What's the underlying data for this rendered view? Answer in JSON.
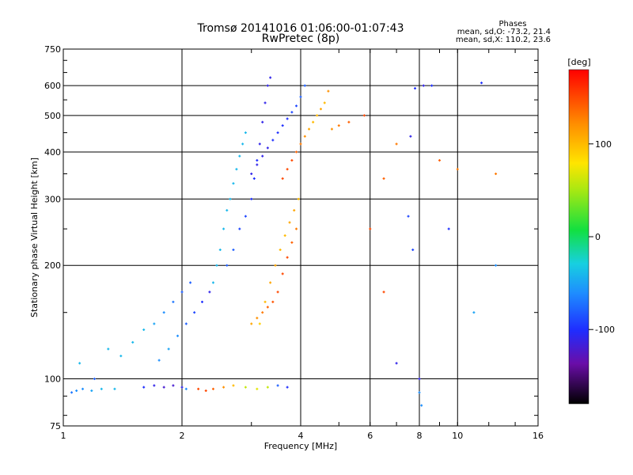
{
  "chart_data": {
    "type": "scatter",
    "title": "Tromsø 20141016 01:06:00-01:07:43",
    "subtitle": "RwPretec (8p)",
    "xlabel": "Frequency [MHz]",
    "ylabel": "Stationary phase Virtual Height [km]",
    "xscale": "log",
    "yscale": "log",
    "xlim": [
      1,
      16
    ],
    "ylim": [
      75,
      750
    ],
    "x_ticks": [
      1,
      2,
      4,
      6,
      8,
      10,
      16
    ],
    "y_ticks": [
      75,
      100,
      200,
      300,
      400,
      500,
      600,
      750
    ],
    "grid": true,
    "stats": {
      "header": "Phases",
      "line_o": "mean, sd,O: -73.2, 21.4",
      "line_x": "mean, sd,X: 110.2, 23.6"
    },
    "colorbar": {
      "label": "[deg]",
      "range": [
        -180,
        180
      ],
      "ticks": [
        100,
        0,
        -100
      ],
      "colormap": "rainbow"
    },
    "series": [
      {
        "color_by": "phase",
        "points": [
          [
            1.05,
            92,
            -70
          ],
          [
            1.08,
            93,
            -60
          ],
          [
            1.12,
            94,
            -60
          ],
          [
            1.18,
            93,
            -50
          ],
          [
            1.25,
            94,
            -40
          ],
          [
            1.35,
            94,
            -40
          ],
          [
            1.1,
            110,
            -40
          ],
          [
            1.2,
            100,
            -80
          ],
          [
            1.3,
            120,
            -40
          ],
          [
            1.6,
            95,
            -100
          ],
          [
            1.7,
            96,
            -110
          ],
          [
            1.8,
            95,
            -120
          ],
          [
            1.9,
            96,
            -120
          ],
          [
            2.0,
            95,
            -110
          ],
          [
            2.05,
            94,
            -60
          ],
          [
            2.2,
            94,
            150
          ],
          [
            2.3,
            93,
            150
          ],
          [
            2.4,
            94,
            140
          ],
          [
            2.55,
            95,
            120
          ],
          [
            2.7,
            96,
            100
          ],
          [
            2.9,
            95,
            60
          ],
          [
            3.1,
            94,
            70
          ],
          [
            3.3,
            95,
            60
          ],
          [
            3.5,
            96,
            -80
          ],
          [
            3.7,
            95,
            -100
          ],
          [
            1.4,
            115,
            -40
          ],
          [
            1.5,
            125,
            -40
          ],
          [
            1.6,
            135,
            -40
          ],
          [
            1.7,
            140,
            -50
          ],
          [
            1.8,
            150,
            -60
          ],
          [
            1.9,
            160,
            -70
          ],
          [
            2.0,
            170,
            -80
          ],
          [
            2.1,
            180,
            -80
          ],
          [
            1.75,
            112,
            -60
          ],
          [
            1.85,
            120,
            -50
          ],
          [
            1.95,
            130,
            -60
          ],
          [
            2.05,
            140,
            -80
          ],
          [
            2.15,
            150,
            -90
          ],
          [
            2.25,
            160,
            -100
          ],
          [
            2.35,
            170,
            -110
          ],
          [
            2.4,
            180,
            -40
          ],
          [
            2.45,
            200,
            -40
          ],
          [
            2.5,
            220,
            -40
          ],
          [
            2.55,
            250,
            -40
          ],
          [
            2.6,
            280,
            -40
          ],
          [
            2.65,
            300,
            -40
          ],
          [
            2.7,
            330,
            -40
          ],
          [
            2.75,
            360,
            -40
          ],
          [
            2.8,
            390,
            -40
          ],
          [
            2.85,
            420,
            -40
          ],
          [
            2.9,
            450,
            -40
          ],
          [
            2.6,
            200,
            -80
          ],
          [
            2.7,
            220,
            -80
          ],
          [
            2.8,
            250,
            -90
          ],
          [
            2.9,
            270,
            -90
          ],
          [
            3.0,
            300,
            -100
          ],
          [
            3.05,
            340,
            -100
          ],
          [
            3.1,
            380,
            -100
          ],
          [
            3.15,
            420,
            -110
          ],
          [
            3.2,
            480,
            -110
          ],
          [
            3.25,
            540,
            -110
          ],
          [
            3.3,
            600,
            -110
          ],
          [
            3.35,
            630,
            -110
          ],
          [
            3.0,
            350,
            -110
          ],
          [
            3.1,
            370,
            -110
          ],
          [
            3.2,
            390,
            -110
          ],
          [
            3.3,
            410,
            -110
          ],
          [
            3.4,
            430,
            -100
          ],
          [
            3.5,
            450,
            -100
          ],
          [
            3.6,
            470,
            -100
          ],
          [
            3.7,
            490,
            -100
          ],
          [
            3.8,
            510,
            -90
          ],
          [
            3.9,
            530,
            -90
          ],
          [
            4.0,
            560,
            -80
          ],
          [
            4.1,
            600,
            -80
          ],
          [
            3.0,
            140,
            110
          ],
          [
            3.1,
            145,
            120
          ],
          [
            3.2,
            150,
            130
          ],
          [
            3.3,
            155,
            140
          ],
          [
            3.4,
            160,
            145
          ],
          [
            3.5,
            170,
            150
          ],
          [
            3.6,
            190,
            150
          ],
          [
            3.7,
            210,
            150
          ],
          [
            3.8,
            230,
            140
          ],
          [
            3.9,
            250,
            130
          ],
          [
            3.15,
            140,
            90
          ],
          [
            3.25,
            160,
            100
          ],
          [
            3.35,
            180,
            110
          ],
          [
            3.45,
            200,
            110
          ],
          [
            3.55,
            220,
            100
          ],
          [
            3.65,
            240,
            100
          ],
          [
            3.75,
            260,
            110
          ],
          [
            3.85,
            280,
            110
          ],
          [
            3.95,
            300,
            100
          ],
          [
            3.6,
            340,
            150
          ],
          [
            3.7,
            360,
            150
          ],
          [
            3.8,
            380,
            150
          ],
          [
            3.9,
            400,
            140
          ],
          [
            4.0,
            420,
            130
          ],
          [
            4.1,
            440,
            120
          ],
          [
            4.2,
            460,
            110
          ],
          [
            4.3,
            480,
            100
          ],
          [
            4.4,
            500,
            100
          ],
          [
            4.5,
            520,
            110
          ],
          [
            4.6,
            540,
            100
          ],
          [
            4.7,
            580,
            120
          ],
          [
            4.8,
            460,
            120
          ],
          [
            5.0,
            470,
            130
          ],
          [
            5.3,
            480,
            140
          ],
          [
            5.8,
            500,
            150
          ],
          [
            6.5,
            340,
            140
          ],
          [
            7.0,
            420,
            130
          ],
          [
            7.6,
            440,
            -110
          ],
          [
            7.8,
            590,
            -100
          ],
          [
            8.2,
            600,
            -110
          ],
          [
            9.0,
            380,
            140
          ],
          [
            10.0,
            360,
            130
          ],
          [
            11.5,
            610,
            -100
          ],
          [
            12.5,
            350,
            130
          ],
          [
            6.0,
            250,
            150
          ],
          [
            6.5,
            170,
            150
          ],
          [
            7.0,
            110,
            -110
          ],
          [
            7.5,
            270,
            -90
          ],
          [
            7.7,
            220,
            -90
          ],
          [
            8.0,
            100,
            -110
          ],
          [
            8.0,
            92,
            -60
          ],
          [
            8.1,
            85,
            -60
          ],
          [
            8.6,
            600,
            -100
          ],
          [
            9.5,
            250,
            -100
          ],
          [
            11.0,
            150,
            -50
          ],
          [
            12.5,
            200,
            -60
          ]
        ]
      }
    ]
  }
}
